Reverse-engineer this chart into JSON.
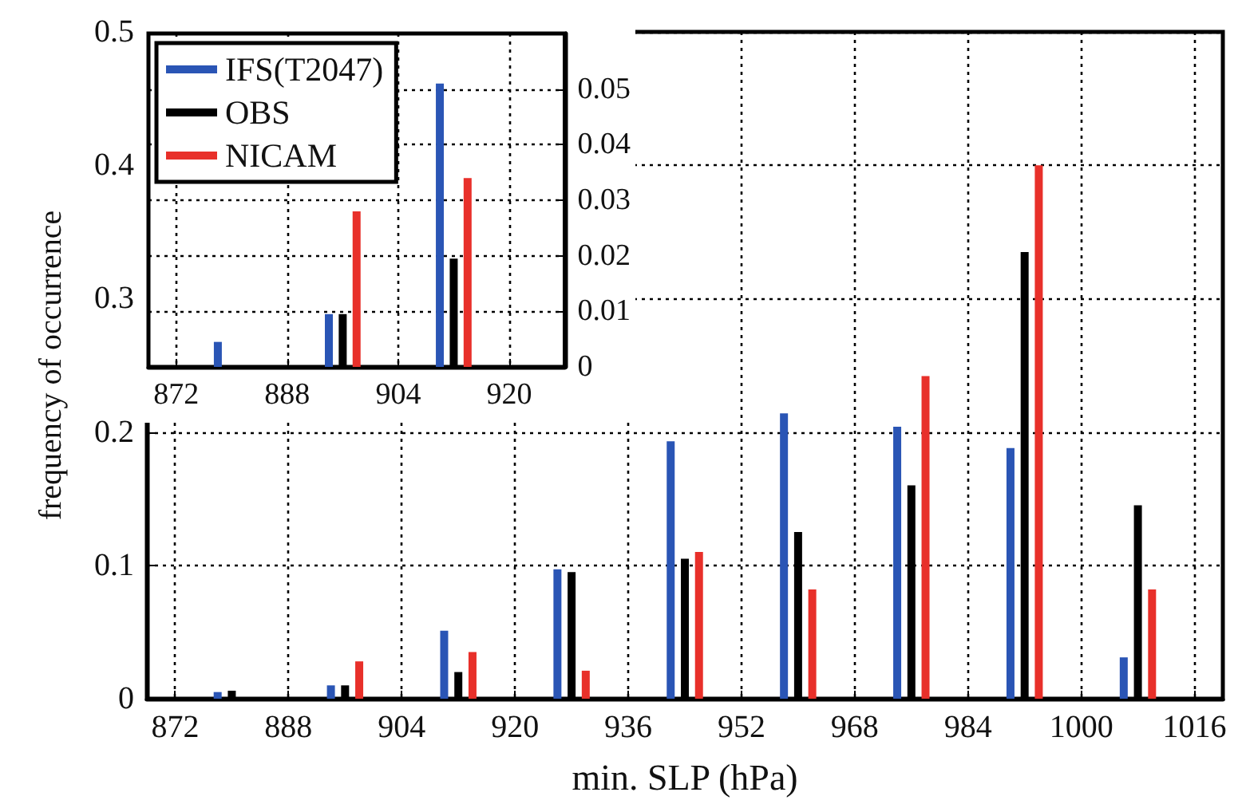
{
  "chart_data": [
    {
      "type": "bar",
      "xlabel": "min. SLP (hPa)",
      "ylabel": "frequency of occurrence",
      "xlim": [
        868,
        1020
      ],
      "xticks": [
        872,
        888,
        904,
        920,
        936,
        952,
        968,
        984,
        1000,
        1016
      ],
      "ylim": [
        0,
        0.5
      ],
      "yticks": [
        0,
        0.1,
        0.2,
        0.3,
        0.4,
        0.5
      ],
      "grid": true,
      "series": [
        {
          "color": "#2a55b5",
          "x": [
            878,
            894,
            910,
            926,
            942,
            958,
            974,
            990,
            1006
          ],
          "values": [
            0.005,
            0.01,
            0.051,
            0.097,
            0.193,
            0.214,
            0.204,
            0.188,
            0.031
          ]
        },
        {
          "color": "#000000",
          "x": [
            880,
            896,
            912,
            928,
            944,
            960,
            976,
            992,
            1008
          ],
          "values": [
            0.006,
            0.01,
            0.02,
            0.095,
            0.105,
            0.125,
            0.16,
            0.335,
            0.145
          ]
        },
        {
          "color": "#e8302a",
          "x": [
            898,
            914,
            930,
            946,
            962,
            978,
            994,
            1010
          ],
          "values": [
            0.028,
            0.035,
            0.021,
            0.11,
            0.082,
            0.242,
            0.4,
            0.082
          ]
        }
      ]
    },
    {
      "type": "bar",
      "xlim": [
        868,
        928
      ],
      "xticks": [
        872,
        888,
        904,
        920
      ],
      "ylim": [
        0,
        0.06
      ],
      "yticks": [
        0,
        0.01,
        0.02,
        0.03,
        0.04,
        0.05
      ],
      "grid": true,
      "legend": "top left",
      "series": [
        {
          "name": "IFS(T2047)",
          "color": "#2a55b5",
          "x": [
            878,
            894,
            910
          ],
          "values": [
            0.0045,
            0.0095,
            0.051
          ]
        },
        {
          "name": "OBS",
          "color": "#000000",
          "x": [
            896,
            912
          ],
          "values": [
            0.0095,
            0.0195
          ]
        },
        {
          "name": "NICAM",
          "color": "#e8302a",
          "x": [
            898,
            914
          ],
          "values": [
            0.028,
            0.034
          ]
        }
      ]
    }
  ]
}
